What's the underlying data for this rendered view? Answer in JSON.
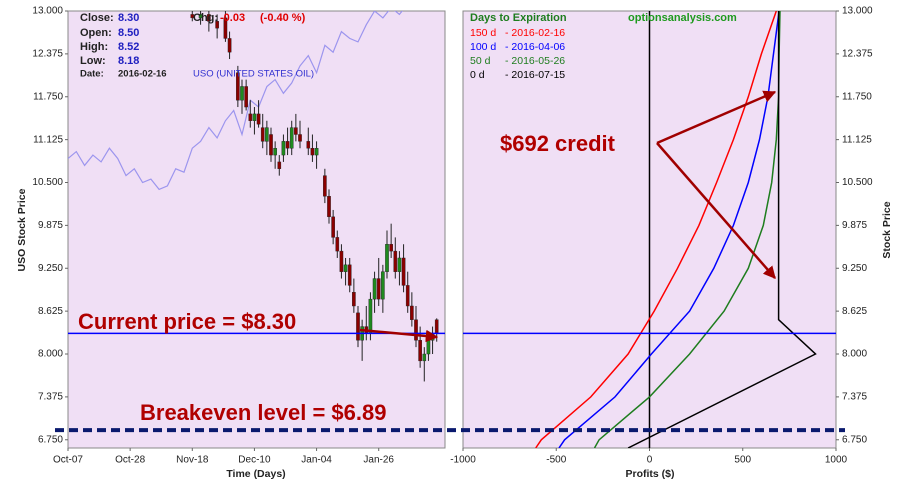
{
  "chart_data": [
    {
      "type": "candlestick",
      "x_label": "Time (Days)",
      "y_label": "USO Stock Price",
      "xlim": [
        0,
        91
      ],
      "ylim": [
        6.63,
        13.0
      ],
      "xticks": [
        {
          "value": 0,
          "label": "Oct-07"
        },
        {
          "value": 15,
          "label": "Oct-28"
        },
        {
          "value": 30,
          "label": "Nov-18"
        },
        {
          "value": 45,
          "label": "Dec-10"
        },
        {
          "value": 60,
          "label": "Jan-04"
        },
        {
          "value": 75,
          "label": "Jan-26"
        }
      ],
      "yticks": [
        {
          "value": 6.75,
          "label": "6.750"
        },
        {
          "value": 7.375,
          "label": "7.375"
        },
        {
          "value": 8.0,
          "label": "8.000"
        },
        {
          "value": 8.625,
          "label": "8.625"
        },
        {
          "value": 9.25,
          "label": "9.250"
        },
        {
          "value": 9.875,
          "label": "9.875"
        },
        {
          "value": 10.5,
          "label": "10.500"
        },
        {
          "value": 11.125,
          "label": "11.125"
        },
        {
          "value": 11.75,
          "label": "11.750"
        },
        {
          "value": 12.375,
          "label": "12.375"
        },
        {
          "value": 13.0,
          "label": "13.000"
        }
      ],
      "up_color": "#1f8a1f",
      "down_color": "#8b0000",
      "x": [
        30,
        32,
        34,
        36,
        38,
        39,
        41,
        42,
        43,
        44,
        45,
        46,
        47,
        48,
        49,
        50,
        51,
        52,
        53,
        54,
        55,
        56,
        58,
        59,
        60,
        62,
        63,
        64,
        65,
        66,
        67,
        68,
        69,
        70,
        71,
        72,
        73,
        74,
        75,
        76,
        77,
        78,
        79,
        80,
        81,
        82,
        83,
        84,
        85,
        86,
        87,
        88,
        89
      ],
      "open": [
        12.95,
        12.9,
        12.95,
        12.85,
        12.9,
        12.6,
        12.1,
        11.7,
        11.9,
        11.5,
        11.4,
        11.5,
        11.3,
        11.1,
        11.2,
        10.9,
        10.8,
        10.9,
        11.1,
        11.0,
        11.3,
        11.2,
        11.1,
        11.0,
        10.9,
        10.6,
        10.3,
        10.0,
        9.7,
        9.5,
        9.2,
        9.3,
        8.9,
        8.6,
        8.2,
        8.4,
        8.3,
        8.8,
        9.1,
        8.8,
        9.2,
        9.6,
        9.5,
        9.2,
        9.4,
        9.0,
        8.7,
        8.5,
        8.2,
        7.9,
        8.0,
        8.2,
        8.5
      ],
      "high": [
        13.1,
        13.05,
        13.0,
        12.95,
        13.0,
        12.7,
        12.2,
        12.0,
        12.0,
        11.7,
        11.6,
        11.7,
        11.5,
        11.4,
        11.3,
        11.1,
        10.9,
        11.2,
        11.3,
        11.4,
        11.5,
        11.4,
        11.3,
        11.2,
        11.1,
        10.7,
        10.4,
        10.1,
        9.8,
        9.6,
        9.4,
        9.4,
        9.1,
        8.7,
        8.5,
        8.7,
        8.9,
        9.2,
        9.4,
        9.3,
        9.8,
        9.9,
        9.7,
        9.5,
        9.6,
        9.2,
        8.9,
        8.7,
        8.4,
        8.1,
        8.3,
        8.4,
        8.52
      ],
      "low": [
        12.85,
        12.8,
        12.7,
        12.6,
        12.55,
        12.3,
        11.6,
        11.5,
        11.55,
        11.3,
        11.2,
        11.3,
        11.0,
        10.9,
        10.8,
        10.7,
        10.6,
        10.8,
        10.9,
        10.9,
        11.1,
        11.0,
        10.9,
        10.8,
        10.7,
        10.2,
        9.9,
        9.6,
        9.4,
        9.1,
        9.0,
        8.9,
        8.6,
        8.1,
        7.9,
        8.2,
        8.2,
        8.6,
        8.7,
        8.6,
        9.1,
        9.4,
        9.1,
        9.0,
        8.9,
        8.6,
        8.4,
        8.1,
        7.8,
        7.6,
        7.9,
        8.0,
        8.18
      ],
      "close": [
        12.9,
        12.95,
        12.85,
        12.75,
        12.6,
        12.4,
        11.7,
        11.9,
        11.6,
        11.4,
        11.5,
        11.35,
        11.1,
        11.3,
        10.9,
        11.0,
        10.7,
        11.1,
        11.0,
        11.3,
        11.2,
        11.1,
        11.0,
        10.9,
        11.0,
        10.3,
        10.0,
        9.7,
        9.5,
        9.2,
        9.3,
        9.0,
        8.7,
        8.2,
        8.4,
        8.3,
        8.8,
        9.1,
        8.8,
        9.2,
        9.6,
        9.5,
        9.2,
        9.4,
        9.0,
        8.7,
        8.5,
        8.2,
        7.9,
        8.0,
        8.2,
        8.3,
        8.3
      ],
      "overlay": {
        "name": "USO (UNITED STATES OIL)",
        "color": "#9c95ee",
        "x": [
          0,
          2,
          4,
          6,
          8,
          10,
          12,
          14,
          16,
          18,
          20,
          22,
          24,
          26,
          28,
          30,
          32,
          34,
          36,
          38,
          40,
          42,
          44,
          46,
          48,
          50,
          52,
          54,
          56,
          58,
          60,
          62,
          64,
          66,
          68,
          70,
          72,
          74,
          76,
          78,
          80,
          82,
          84,
          86
        ],
        "values": [
          10.85,
          10.95,
          10.75,
          10.9,
          10.8,
          11.0,
          10.85,
          10.6,
          10.7,
          10.5,
          10.55,
          10.4,
          10.45,
          10.7,
          10.65,
          11.0,
          11.1,
          11.3,
          11.15,
          11.4,
          11.55,
          11.2,
          11.7,
          11.6,
          11.9,
          12.0,
          11.8,
          11.95,
          12.2,
          12.35,
          12.1,
          12.5,
          12.4,
          12.7,
          12.6,
          12.55,
          12.8,
          13.0,
          12.9,
          13.05,
          12.95,
          13.1,
          13.2,
          13.3
        ]
      },
      "hlines": [
        {
          "value": 8.3,
          "color": "#0000ff",
          "dashed": false
        },
        {
          "value": 6.89,
          "color": "#0a1a6e",
          "dashed": true
        }
      ],
      "info": {
        "close_label": "Close:",
        "close": "8.30",
        "open_label": "Open:",
        "open": "8.50",
        "high_label": "High:",
        "high": "8.52",
        "low_label": "Low:",
        "low": "8.18",
        "date_label": "Date:",
        "date": "2016-02-16",
        "chg_label": "Chg:",
        "chg": "-0.03",
        "chg_pct": "(-0.40 %)"
      },
      "annotations": [
        "Current price = $8.30",
        "Breakeven level = $6.89"
      ]
    },
    {
      "type": "line",
      "x_label": "Profits ($)",
      "y_label": "Stock Price",
      "legend_title": "Days to Expiration",
      "watermark": "optionsanalysis.com",
      "xlim": [
        -1000,
        1000
      ],
      "ylim": [
        6.63,
        13.0
      ],
      "xticks": [
        -1000,
        -500,
        0,
        500,
        1000
      ],
      "yticks": [
        {
          "value": 6.75,
          "label": "6.750"
        },
        {
          "value": 7.375,
          "label": "7.375"
        },
        {
          "value": 8.0,
          "label": "8.000"
        },
        {
          "value": 8.625,
          "label": "8.625"
        },
        {
          "value": 9.25,
          "label": "9.250"
        },
        {
          "value": 9.875,
          "label": "9.875"
        },
        {
          "value": 10.5,
          "label": "10.500"
        },
        {
          "value": 11.125,
          "label": "11.125"
        },
        {
          "value": 11.75,
          "label": "11.750"
        },
        {
          "value": 12.375,
          "label": "12.375"
        },
        {
          "value": 13.0,
          "label": "13.000"
        }
      ],
      "vlines": [
        0
      ],
      "series": [
        {
          "name": "150 d",
          "expiry": "- 2016-02-16",
          "color": "#ff0000",
          "x": [
            -610,
            -580,
            -315,
            -115,
            25,
            150,
            265,
            360,
            450,
            530,
            600,
            680
          ],
          "values": [
            6.63,
            6.75,
            7.375,
            8.0,
            8.625,
            9.25,
            9.875,
            10.5,
            11.125,
            11.75,
            12.375,
            13.0
          ]
        },
        {
          "name": "100 d",
          "expiry": "- 2016-04-06",
          "color": "#0000ff",
          "x": [
            -485,
            -455,
            -185,
            10,
            215,
            345,
            450,
            530,
            590,
            635,
            665,
            695
          ],
          "values": [
            6.63,
            6.75,
            7.375,
            8.0,
            8.625,
            9.25,
            9.875,
            10.5,
            11.125,
            11.75,
            12.375,
            13.0
          ]
        },
        {
          "name": "50 d",
          "expiry": "- 2016-05-26",
          "color": "#1e7d1e",
          "x": [
            -295,
            -270,
            0,
            215,
            400,
            530,
            610,
            655,
            680,
            692,
            695,
            700
          ],
          "values": [
            6.63,
            6.75,
            7.375,
            8.0,
            8.625,
            9.25,
            9.875,
            10.5,
            11.125,
            11.75,
            12.375,
            13.0
          ]
        },
        {
          "name": "0 d",
          "expiry": "- 2016-07-15",
          "color": "#000000",
          "x": [
            -115,
            890,
            692,
            692
          ],
          "values": [
            6.63,
            8.0,
            8.5,
            13.0
          ]
        }
      ],
      "annotations": [
        "$692 credit"
      ]
    }
  ]
}
